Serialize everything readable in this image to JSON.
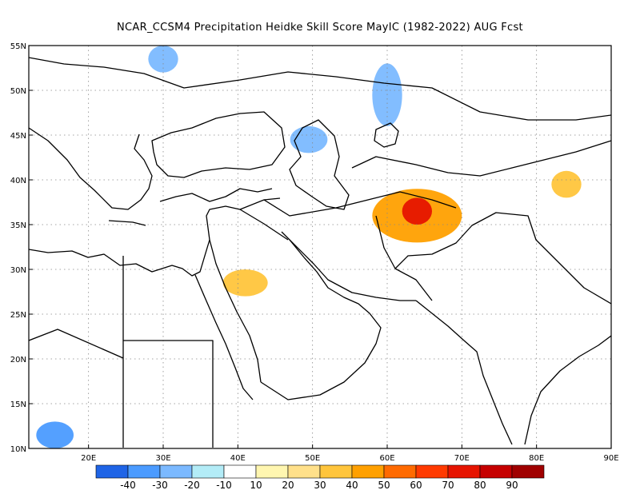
{
  "title": "NCAR_CCSM4  Precipitation Heidke Skill Score MayIC (1982-2022) AUG Fcst",
  "map": {
    "lon_range": [
      12,
      90
    ],
    "lat_range": [
      10,
      55
    ],
    "lat_ticks": [
      {
        "value": 55,
        "label": "55N"
      },
      {
        "value": 50,
        "label": "50N"
      },
      {
        "value": 45,
        "label": "45N"
      },
      {
        "value": 40,
        "label": "40N"
      },
      {
        "value": 35,
        "label": "35N"
      },
      {
        "value": 30,
        "label": "30N"
      },
      {
        "value": 25,
        "label": "25N"
      },
      {
        "value": 20,
        "label": "20N"
      },
      {
        "value": 15,
        "label": "15N"
      },
      {
        "value": 10,
        "label": "10N"
      }
    ],
    "lon_ticks": [
      {
        "value": 20,
        "label": "20E"
      },
      {
        "value": 30,
        "label": "30E"
      },
      {
        "value": 40,
        "label": "40E"
      },
      {
        "value": 50,
        "label": "50E"
      },
      {
        "value": 60,
        "label": "60E"
      },
      {
        "value": 70,
        "label": "70E"
      },
      {
        "value": 80,
        "label": "80E"
      },
      {
        "value": 90,
        "label": "90E"
      }
    ],
    "grid": true,
    "field": "precipitation Heidke skill score",
    "features": [
      {
        "name": "positive-skill-peak",
        "lon": [
          62,
          66
        ],
        "lat": [
          35,
          38
        ],
        "value": 70
      },
      {
        "name": "positive-skill",
        "lon": [
          58,
          70
        ],
        "lat": [
          33,
          39
        ],
        "value": 40
      },
      {
        "name": "positive-skill",
        "lon": [
          38,
          44
        ],
        "lat": [
          27,
          30
        ],
        "value": 30
      },
      {
        "name": "positive-skill",
        "lon": [
          82,
          86
        ],
        "lat": [
          38,
          41
        ],
        "value": 30
      },
      {
        "name": "negative-skill",
        "lon": [
          58,
          62
        ],
        "lat": [
          46,
          53
        ],
        "value": -30
      },
      {
        "name": "negative-skill",
        "lon": [
          28,
          32
        ],
        "lat": [
          52,
          55
        ],
        "value": -30
      },
      {
        "name": "negative-skill",
        "lon": [
          47,
          52
        ],
        "lat": [
          43,
          46
        ],
        "value": -30
      },
      {
        "name": "negative-skill",
        "lon": [
          13,
          18
        ],
        "lat": [
          10,
          13
        ],
        "value": -40
      }
    ]
  },
  "colorbar": {
    "colors": [
      "#1f64e6",
      "#4b9bff",
      "#7bb9ff",
      "#b3ecf7",
      "#ffffff",
      "#fff6b0",
      "#ffe08a",
      "#ffc53c",
      "#ffa000",
      "#ff6a00",
      "#ff3a00",
      "#e61400",
      "#c60000",
      "#a00000"
    ],
    "labels": [
      "-40",
      "-30",
      "-20",
      "-10",
      "10",
      "20",
      "30",
      "40",
      "50",
      "60",
      "70",
      "80",
      "90"
    ]
  }
}
